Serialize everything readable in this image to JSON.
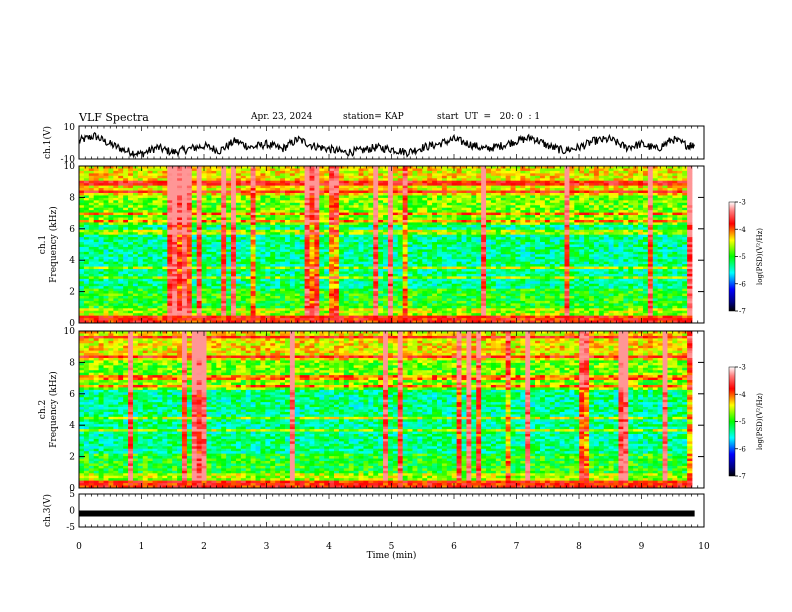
{
  "header": {
    "title": "VLF Spectra",
    "date": "Apr. 23, 2024",
    "station": "station= KAP",
    "start_ut": "start  UT  =   20: 0  : 1"
  },
  "chart_data": [
    {
      "type": "line",
      "panel": "waveform-ch1",
      "ylabel": "ch.1(V)",
      "ylim": [
        -10,
        10
      ],
      "y_ticklabels": [
        "10",
        "-10"
      ],
      "x": [
        0,
        0.25,
        0.5,
        0.75,
        1,
        1.25,
        1.5,
        1.75,
        2,
        2.25,
        2.5,
        2.75,
        3,
        3.25,
        3.5,
        3.75,
        4,
        4.25,
        4.5,
        4.75,
        5,
        5.25,
        5.5,
        5.75,
        6,
        6.25,
        6.5,
        6.75,
        7,
        7.25,
        7.5,
        7.75,
        8,
        8.25,
        8.5,
        8.75,
        9,
        9.25,
        9.5,
        9.75,
        9.85
      ],
      "values": [
        1,
        4,
        -1,
        -5,
        -7,
        -3,
        -6,
        -4,
        -2,
        -5,
        1,
        -3,
        -1,
        -4,
        2,
        -2,
        -4,
        -6,
        -5,
        -3,
        -4,
        -6,
        -3,
        -1,
        2,
        -1,
        -4,
        -2,
        1,
        3,
        -2,
        -5,
        -3,
        1,
        2,
        -3,
        -1,
        -4,
        2,
        -2,
        -1
      ]
    },
    {
      "type": "heatmap",
      "panel": "spectrogram-ch1",
      "ylabel": "ch.1\nFrequency (kHz)",
      "ylim": [
        0,
        10
      ],
      "y_ticklabels": [
        "0",
        "2",
        "4",
        "6",
        "8",
        "10"
      ],
      "colorbar": {
        "label": "log(PSD)(V²/Hz)",
        "range": [
          -7,
          -3
        ],
        "ticklabels": [
          "-3",
          "-4",
          "-5",
          "-6",
          "-7"
        ]
      }
    },
    {
      "type": "heatmap",
      "panel": "spectrogram-ch2",
      "ylabel": "ch.2\nFrequency (kHz)",
      "ylim": [
        0,
        10
      ],
      "y_ticklabels": [
        "0",
        "2",
        "4",
        "6",
        "8",
        "10"
      ],
      "colorbar": {
        "label": "log(PSD)(V²/Hz)",
        "range": [
          -7,
          -3
        ],
        "ticklabels": [
          "-3",
          "-4",
          "-5",
          "-6",
          "-7"
        ]
      }
    },
    {
      "type": "line",
      "panel": "waveform-ch3",
      "ylabel": "ch.3(V)",
      "ylim": [
        -5,
        5
      ],
      "y_ticklabels": [
        "5",
        "0",
        "-5"
      ],
      "x": [
        0,
        9.85
      ],
      "values": [
        -0.6,
        -0.6
      ],
      "xlabel": "Time (min)",
      "xlim": [
        0,
        10
      ],
      "x_ticklabels": [
        "0",
        "1",
        "2",
        "3",
        "4",
        "5",
        "6",
        "7",
        "8",
        "9",
        "10"
      ]
    }
  ]
}
